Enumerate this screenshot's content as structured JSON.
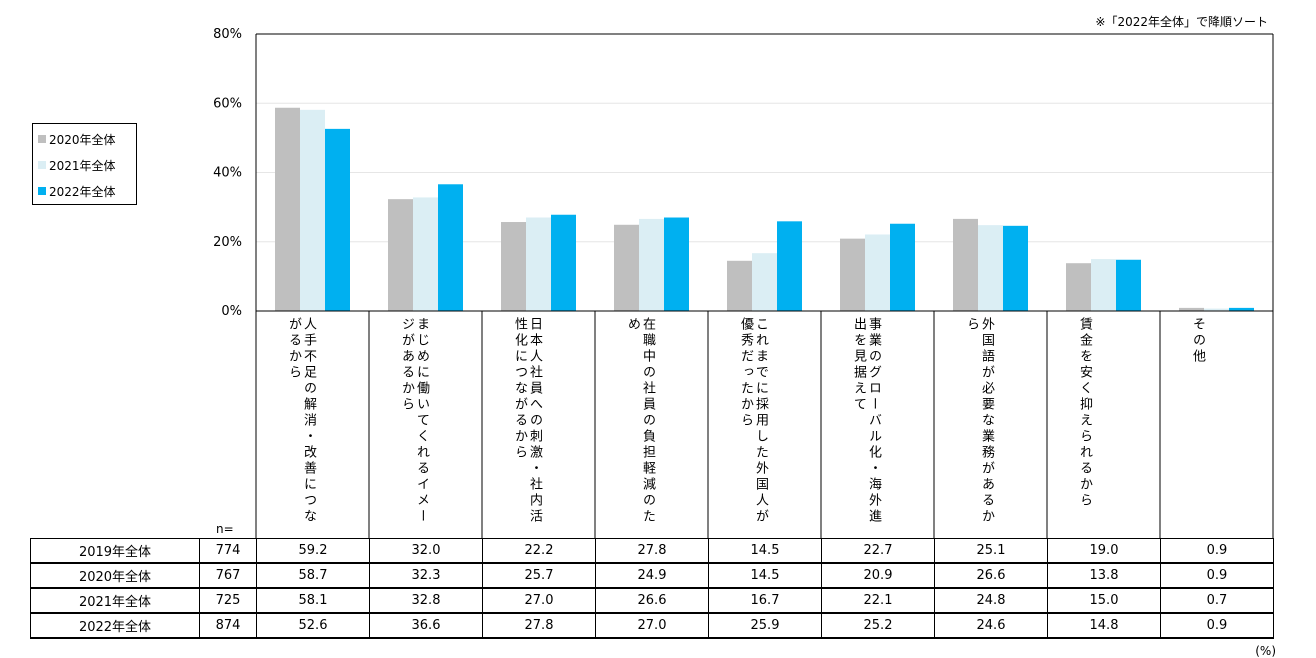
{
  "note": "※「2022年全体」で降順ソート",
  "n_label": "n=",
  "unit": "(%)",
  "legend": [
    {
      "label": "2020年全体",
      "color": "#bfbfbf"
    },
    {
      "label": "2021年全体",
      "color": "#dbeef4"
    },
    {
      "label": "2022年全体",
      "color": "#00b0f0"
    }
  ],
  "chart_data": {
    "type": "bar",
    "ylim": [
      0,
      80
    ],
    "yticks": [
      "0%",
      "20%",
      "40%",
      "60%",
      "80%"
    ],
    "grid": true,
    "legend_position": "left",
    "categories": [
      "人手不足の解消・改善につながるから",
      "まじめに働いてくれるイメージがあるから",
      "日本人社員への刺激・社内活性化につながるから",
      "在職中の社員の負担軽減のため",
      "これまでに採用した外国人が優秀だったから",
      "事業のグローバル化・海外進出を見据えて",
      "外国語が必要な業務があるから",
      "賃金を安く抑えられるから",
      "その他"
    ],
    "series": [
      {
        "name": "2020年全体",
        "color": "#bfbfbf",
        "values": [
          58.7,
          32.3,
          25.7,
          24.9,
          14.5,
          20.9,
          26.6,
          13.8,
          0.9
        ]
      },
      {
        "name": "2021年全体",
        "color": "#dbeef4",
        "values": [
          58.1,
          32.8,
          27.0,
          26.6,
          16.7,
          22.1,
          24.8,
          15.0,
          0.7
        ]
      },
      {
        "name": "2022年全体",
        "color": "#00b0f0",
        "values": [
          52.6,
          36.6,
          27.8,
          27.0,
          25.9,
          25.2,
          24.6,
          14.8,
          0.9
        ]
      }
    ]
  },
  "table": {
    "rows": [
      {
        "label": "2019年全体",
        "n": "774",
        "values": [
          "59.2",
          "32.0",
          "22.2",
          "27.8",
          "14.5",
          "22.7",
          "25.1",
          "19.0",
          "0.9"
        ]
      },
      {
        "label": "2020年全体",
        "n": "767",
        "values": [
          "58.7",
          "32.3",
          "25.7",
          "24.9",
          "14.5",
          "20.9",
          "26.6",
          "13.8",
          "0.9"
        ]
      },
      {
        "label": "2021年全体",
        "n": "725",
        "values": [
          "58.1",
          "32.8",
          "27.0",
          "26.6",
          "16.7",
          "22.1",
          "24.8",
          "15.0",
          "0.7"
        ]
      },
      {
        "label": "2022年全体",
        "n": "874",
        "values": [
          "52.6",
          "36.6",
          "27.8",
          "27.0",
          "25.9",
          "25.2",
          "24.6",
          "14.8",
          "0.9"
        ]
      }
    ]
  }
}
